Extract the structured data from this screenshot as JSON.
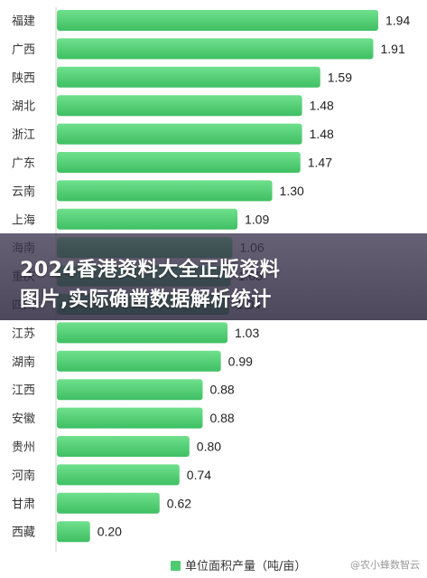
{
  "chart_data": {
    "type": "bar",
    "orientation": "horizontal",
    "categories": [
      "福建",
      "广西",
      "陕西",
      "湖北",
      "浙江",
      "广东",
      "云南",
      "上海",
      "海南",
      "重庆",
      "四川",
      "江苏",
      "湖南",
      "江西",
      "安徽",
      "贵州",
      "河南",
      "甘肃",
      "西藏"
    ],
    "series": [
      {
        "name": "单位面积产量（吨/亩）",
        "values": [
          1.94,
          1.91,
          1.59,
          1.48,
          1.48,
          1.47,
          1.3,
          1.09,
          1.06,
          1.05,
          1.04,
          1.03,
          0.99,
          0.88,
          0.88,
          0.8,
          0.74,
          0.62,
          0.2
        ],
        "value_labels": [
          "1.94",
          "1.91",
          "1.59",
          "1.48",
          "1.48",
          "1.47",
          "1.30",
          "1.09",
          "1.06",
          "1.05",
          "1.04",
          "1.03",
          "0.99",
          "0.88",
          "0.88",
          "0.80",
          "0.74",
          "0.62",
          "0.20"
        ]
      }
    ],
    "xlim": [
      0,
      2.0
    ],
    "grid": false,
    "legend_position": "bottom",
    "bar_color": "#4ecb71"
  },
  "legend": {
    "label": "单位面积产量（吨/亩）",
    "color": "#4ecb71"
  },
  "banner": {
    "line1": "2024香港资料大全正版资料",
    "line2": "图片,实际确凿数据解析统计"
  },
  "watermark": "@农小蜂数智云"
}
